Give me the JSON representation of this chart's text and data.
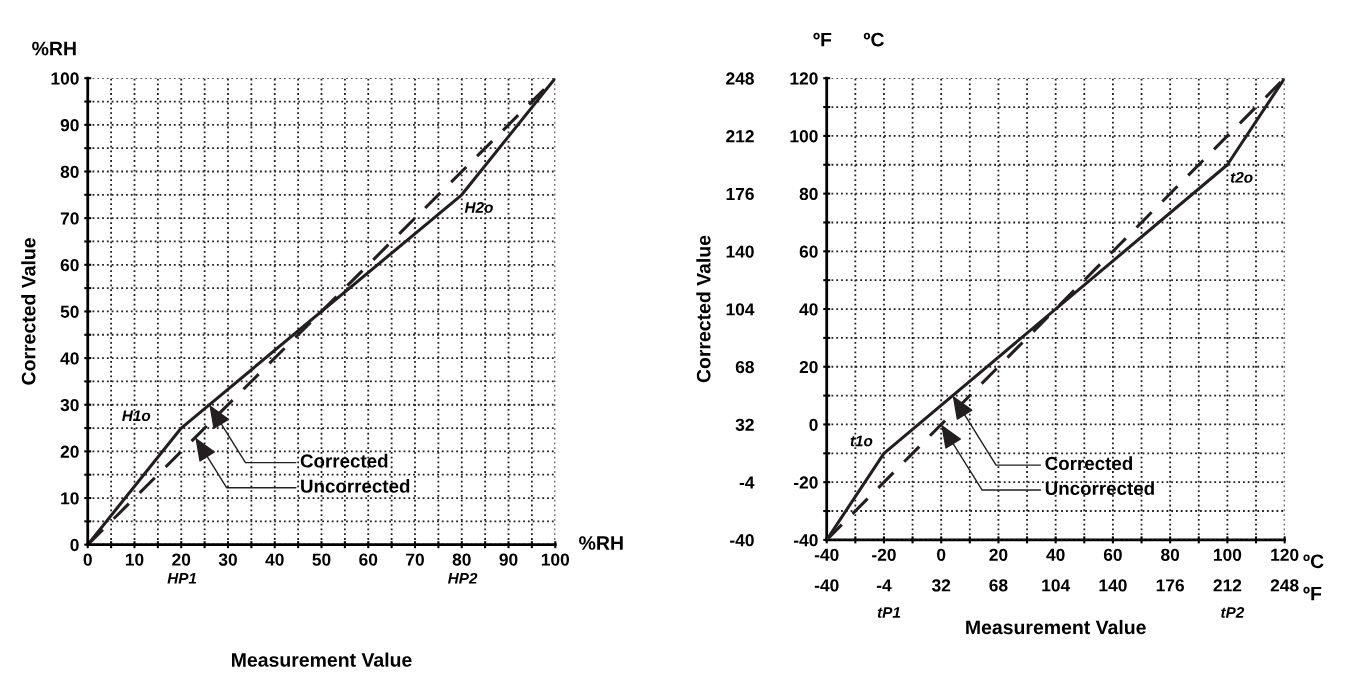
{
  "chart_data": [
    {
      "type": "line",
      "xlabel": "Measurement Value",
      "ylabel": "Corrected Value",
      "x": [
        0,
        20,
        80,
        100
      ],
      "series": [
        {
          "color": "#231f20",
          "values": [
            0,
            25,
            75,
            100
          ],
          "line_style": "solid"
        },
        {
          "color": "#231f20",
          "x": [
            0,
            100
          ],
          "values": [
            0,
            100
          ],
          "line_style": "dashed"
        }
      ],
      "xlim": [
        0,
        100
      ],
      "ylim": [
        0,
        100
      ],
      "xticks": [
        0,
        {
          "value": 5,
          "label": null
        },
        10,
        {
          "value": 15,
          "label": null
        },
        20,
        {
          "value": 25,
          "label": null
        },
        30,
        {
          "value": 35,
          "label": null
        },
        40,
        {
          "value": 45,
          "label": null
        },
        50,
        {
          "value": 55,
          "label": null
        },
        60,
        {
          "value": 65,
          "label": null
        },
        70,
        {
          "value": 75,
          "label": null
        },
        80,
        {
          "value": 85,
          "label": null
        },
        90,
        {
          "value": 95,
          "label": null
        },
        100
      ],
      "yticks": [
        0,
        {
          "value": 5,
          "label": null
        },
        10,
        {
          "value": 15,
          "label": null
        },
        20,
        {
          "value": 25,
          "label": null
        },
        30,
        {
          "value": 35,
          "label": null
        },
        40,
        {
          "value": 45,
          "label": null
        },
        50,
        {
          "value": 55,
          "label": null
        },
        60,
        {
          "value": 65,
          "label": null
        },
        70,
        {
          "value": 75,
          "label": null
        },
        80,
        {
          "value": 85,
          "label": null
        },
        90,
        {
          "value": 95,
          "label": null
        },
        100
      ],
      "grid": true,
      "annotations": [
        "%RH",
        "%RH",
        {
          "text": "H1o",
          "x": 20,
          "y": 25
        },
        {
          "text": "H2o",
          "x": 80,
          "y": 75
        },
        "HP1",
        "HP2",
        {
          "text": "Corrected",
          "x": 26,
          "y": 30
        },
        {
          "text": "Uncorrected",
          "x": 23,
          "y": 23
        }
      ]
    },
    {
      "type": "line",
      "xlabel": "Measurement Value",
      "ylabel": "Corrected Value",
      "x": [
        -40,
        -20,
        100,
        120
      ],
      "series": [
        {
          "color": "#231f20",
          "values": [
            -40,
            -10,
            90,
            120
          ],
          "line_style": "solid",
          "axis": "y2"
        },
        {
          "color": "#231f20",
          "x": [
            -40,
            120
          ],
          "values": [
            -40,
            120
          ],
          "line_style": "dashed",
          "axis": "y2"
        }
      ],
      "xlim": [
        -40,
        120
      ],
      "xticks": [
        -40,
        {
          "value": -30,
          "label": null
        },
        -20,
        {
          "value": -10,
          "label": null
        },
        0,
        {
          "value": 10,
          "label": null
        },
        20,
        {
          "value": 30,
          "label": null
        },
        40,
        {
          "value": 50,
          "label": null
        },
        60,
        {
          "value": 70,
          "label": null
        },
        80,
        {
          "value": 90,
          "label": null
        },
        100,
        {
          "value": 110,
          "label": null
        },
        120
      ],
      "ylim": [
        -40,
        248
      ],
      "yticks": [
        -40,
        -4,
        32,
        68,
        104,
        140,
        176,
        212,
        248
      ],
      "y2lim": [
        -40,
        120
      ],
      "y2ticks": [
        -40,
        {
          "value": -30,
          "label": null
        },
        -20,
        {
          "value": -10,
          "label": null
        },
        0,
        {
          "value": 10,
          "label": null
        },
        20,
        {
          "value": 30,
          "label": null
        },
        40,
        {
          "value": 50,
          "label": null
        },
        60,
        {
          "value": 70,
          "label": null
        },
        80,
        {
          "value": 90,
          "label": null
        },
        100,
        {
          "value": 110,
          "label": null
        },
        120
      ],
      "x2lim": [
        -40,
        248
      ],
      "x2ticks": [
        -40,
        -4,
        32,
        68,
        104,
        140,
        176,
        212,
        248
      ],
      "grid": true,
      "annotations": [
        "ºF",
        "ºC",
        "ºC",
        "ºF",
        {
          "text": "t1o",
          "x": -20,
          "y": 14
        },
        {
          "text": "t2o",
          "x": 100,
          "y": 194
        },
        "tP1",
        "tP2",
        {
          "text": "Corrected",
          "x": 4,
          "y": 50
        },
        {
          "text": "Uncorrected",
          "x": 0,
          "y": 32
        }
      ]
    }
  ]
}
